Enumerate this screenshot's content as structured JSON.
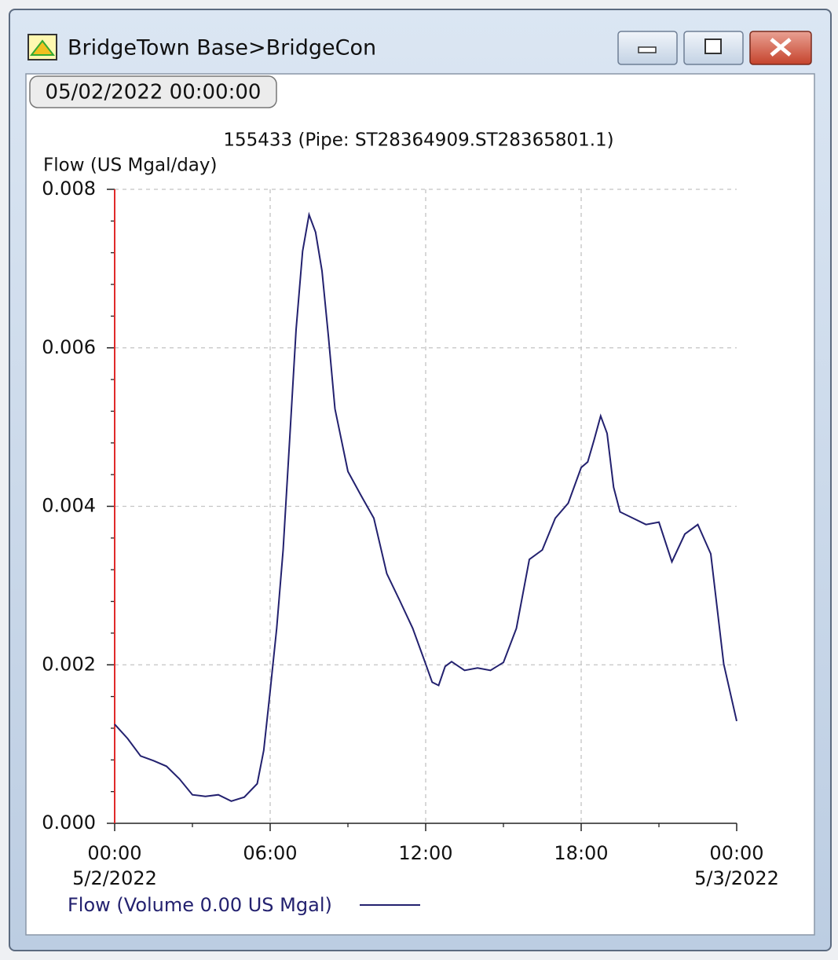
{
  "window": {
    "title": "BridgeTown Base>BridgeCon",
    "date_button": "05/02/2022 00:00:00"
  },
  "chart_data": {
    "type": "line",
    "title": "155433 (Pipe: ST28364909.ST28365801.1)",
    "y_label": "Flow (US Mgal/day)",
    "x": [
      0,
      0.5,
      1,
      1.5,
      2,
      2.5,
      3,
      3.5,
      4,
      4.5,
      5,
      5.5,
      5.75,
      6,
      6.25,
      6.5,
      6.75,
      7,
      7.25,
      7.5,
      7.75,
      8,
      8.25,
      8.5,
      9,
      9.5,
      10,
      10.5,
      11,
      11.5,
      12,
      12.25,
      12.5,
      12.75,
      13,
      13.5,
      14,
      14.5,
      15,
      15.5,
      16,
      16.5,
      17,
      17.5,
      18,
      18.25,
      18.5,
      18.75,
      19,
      19.25,
      19.5,
      20,
      20.5,
      21,
      21.5,
      22,
      22.5,
      23,
      23.5,
      24
    ],
    "series": [
      {
        "name": "Flow (Volume 0.00 US Mgal)",
        "color": "#23216f",
        "values": [
          0.00125,
          0.00107,
          0.00085,
          0.00079,
          0.00072,
          0.00056,
          0.00036,
          0.00034,
          0.00036,
          0.00028,
          0.00033,
          0.0005,
          0.00092,
          0.00167,
          0.00246,
          0.00345,
          0.00484,
          0.00623,
          0.00722,
          0.00768,
          0.00746,
          0.00697,
          0.00613,
          0.00523,
          0.00444,
          0.00414,
          0.00385,
          0.00315,
          0.00281,
          0.00246,
          0.00201,
          0.00178,
          0.00174,
          0.00198,
          0.00204,
          0.00193,
          0.00196,
          0.00193,
          0.00203,
          0.00246,
          0.00333,
          0.00345,
          0.00385,
          0.00404,
          0.00449,
          0.00456,
          0.00484,
          0.00514,
          0.00492,
          0.00424,
          0.00393,
          0.00385,
          0.00377,
          0.0038,
          0.0033,
          0.00365,
          0.00377,
          0.0034,
          0.00201,
          0.00129
        ]
      }
    ],
    "xlim": [
      0,
      24
    ],
    "xticks": [
      {
        "value": 0,
        "label": "00:00"
      },
      {
        "value": 6,
        "label": "06:00"
      },
      {
        "value": 12,
        "label": "12:00"
      },
      {
        "value": 18,
        "label": "18:00"
      },
      {
        "value": 24,
        "label": "00:00"
      }
    ],
    "x_tick_dates": [
      {
        "value": 0,
        "label": "5/2/2022"
      },
      {
        "value": 24,
        "label": "5/3/2022"
      }
    ],
    "x_minor_ticks": [
      3,
      9,
      15,
      21
    ],
    "ylim": [
      0,
      0.008
    ],
    "yticks": [
      {
        "value": 0,
        "label": "0.000"
      },
      {
        "value": 0.002,
        "label": "0.002"
      },
      {
        "value": 0.004,
        "label": "0.004"
      },
      {
        "value": 0.006,
        "label": "0.006"
      },
      {
        "value": 0.008,
        "label": "0.008"
      }
    ],
    "y_minor_ticks": [
      0.0004,
      0.0008,
      0.0012,
      0.0016,
      0.0024,
      0.0028,
      0.0032,
      0.0036,
      0.0044,
      0.0048,
      0.0052,
      0.0056,
      0.0064,
      0.0068,
      0.0072,
      0.0076
    ],
    "grid": true
  }
}
